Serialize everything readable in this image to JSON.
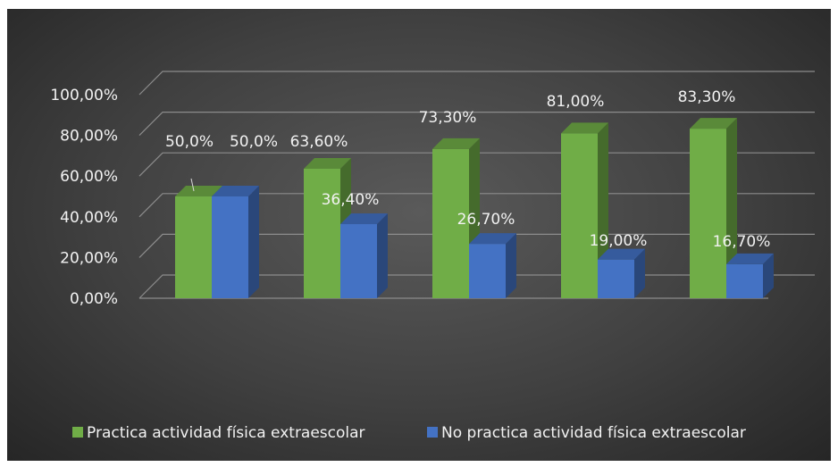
{
  "chart_data": {
    "type": "bar",
    "style": "3d-clustered-column",
    "categories": [
      "",
      "",
      "",
      "",
      ""
    ],
    "series": [
      {
        "name": "Practica actividad física extraescolar",
        "values": [
          50.0,
          63.6,
          73.3,
          81.0,
          83.3
        ],
        "labels": [
          "50,0%",
          "63,60%",
          "73,30%",
          "81,00%",
          "83,30%"
        ],
        "color": "#70ad47"
      },
      {
        "name": "No practica actividad física extraescolar",
        "values": [
          50.0,
          36.4,
          26.7,
          19.0,
          16.7
        ],
        "labels": [
          "50,0%",
          "36,40%",
          "26,70%",
          "19,00%",
          "16,70%"
        ],
        "color": "#4472c4"
      }
    ],
    "ylim": [
      0,
      100
    ],
    "yticks": [
      0,
      20,
      40,
      60,
      80,
      100
    ],
    "ytick_labels": [
      "0,00%",
      "20,00%",
      "40,00%",
      "60,00%",
      "80,00%",
      "100,00%"
    ],
    "grid": true,
    "legend_position": "bottom",
    "background": "#404040"
  }
}
